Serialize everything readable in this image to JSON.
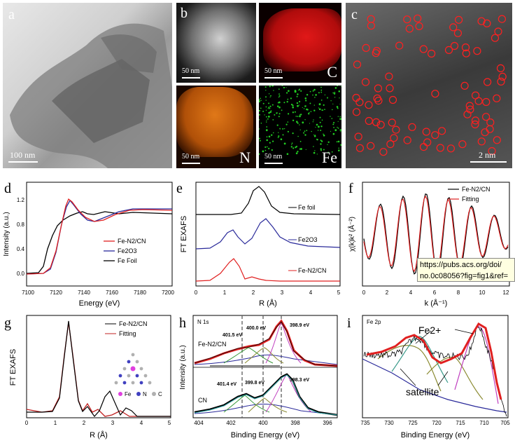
{
  "panels": {
    "a": {
      "label": "a",
      "scale": "100 nm"
    },
    "b": {
      "label": "b",
      "tiles": [
        {
          "scale": "50 nm",
          "element": ""
        },
        {
          "scale": "50 nm",
          "element": "C"
        },
        {
          "scale": "50 nm",
          "element": "N"
        },
        {
          "scale": "50 nm",
          "element": "Fe"
        }
      ]
    },
    "c": {
      "label": "c",
      "scale": "2 nm"
    },
    "d": {
      "label": "d",
      "xlabel": "Energy (eV)",
      "ylabel": "Intensity (a.u.)",
      "xticks": [
        "7100",
        "7120",
        "7140",
        "7160",
        "7180",
        "7200"
      ],
      "yticks": [
        "0.0",
        "0.4",
        "0.8",
        "1.2"
      ],
      "legend": [
        {
          "name": "Fe-N2/CN",
          "color": "#e02020"
        },
        {
          "name": "Fe2O3",
          "color": "#2a2a9a"
        },
        {
          "name": "Fe Foil",
          "color": "#000000"
        }
      ]
    },
    "e": {
      "label": "e",
      "xlabel": "R (Å)",
      "ylabel": "FT EXAFS",
      "xticks": [
        "0",
        "1",
        "2",
        "3",
        "4",
        "5"
      ],
      "legend": [
        "Fe foil",
        "Fe2O3",
        "Fe-N2/CN"
      ]
    },
    "f": {
      "label": "f",
      "xlabel": "k (Å⁻¹)",
      "ylabel": "χ(k)k² (Å⁻²)",
      "xticks": [
        "0",
        "2",
        "4",
        "6",
        "8",
        "10",
        "12"
      ],
      "legend": [
        {
          "name": "Fe-N2/CN",
          "color": "#000000"
        },
        {
          "name": "Fitting",
          "color": "#e02020"
        }
      ]
    },
    "g": {
      "label": "g",
      "xlabel": "R (Å)",
      "ylabel": "FT EXAFS",
      "xticks": [
        "0",
        "1",
        "2",
        "3",
        "4",
        "5"
      ],
      "legend": [
        {
          "name": "Fe-N2/CN",
          "color": "#000000"
        },
        {
          "name": "Fitting",
          "color": "#e02020"
        }
      ],
      "atoms": [
        {
          "name": "Fe",
          "color": "#e040e0"
        },
        {
          "name": "N",
          "color": "#4040c0"
        },
        {
          "name": "C",
          "color": "#b0b0b0"
        }
      ]
    },
    "h": {
      "label": "h",
      "title": "N 1s",
      "xlabel": "Binding Energy (eV)",
      "ylabel": "Intensity (a.u.)",
      "xticks": [
        "404",
        "402",
        "400",
        "398",
        "396"
      ],
      "top": {
        "name": "Fe-N2/CN",
        "peaks": [
          "401.5 eV",
          "400.0 eV",
          "398.9 eV"
        ]
      },
      "bottom": {
        "name": "CN",
        "peaks": [
          "401.4 eV",
          "399.8 eV",
          "398.3 eV"
        ]
      }
    },
    "i": {
      "label": "i",
      "title": "Fe 2p",
      "xlabel": "Binding Energy (eV)",
      "xticks": [
        "735",
        "730",
        "725",
        "720",
        "715",
        "710",
        "705"
      ],
      "ann_fe": "Fe2+",
      "ann_sat": "satellite"
    }
  },
  "tooltip": {
    "line1": "https://pubs.acs.org/doi/",
    "line2": "no.0c08056?fig=fig1&ref="
  }
}
